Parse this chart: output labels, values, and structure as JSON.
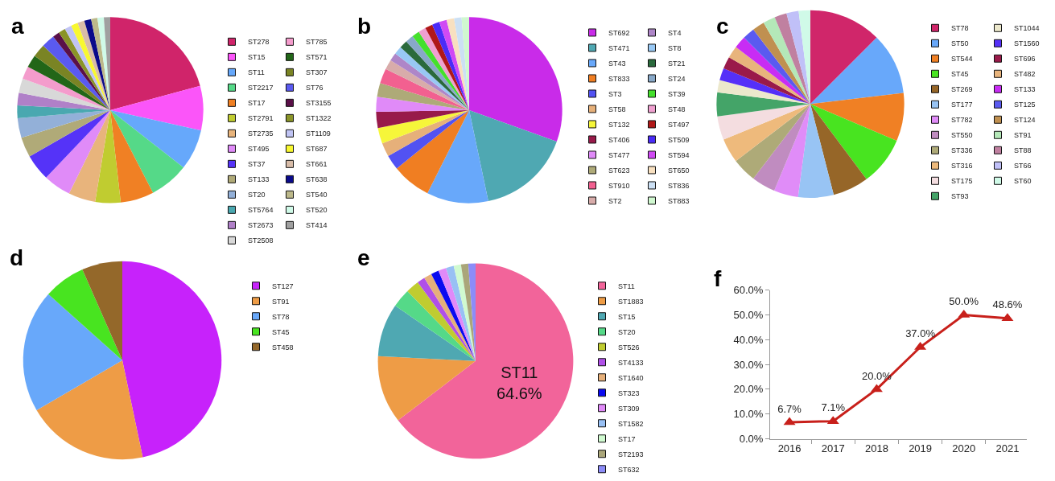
{
  "chart_data": [
    {
      "type": "pie",
      "title": "a",
      "legend": "right",
      "categories": [
        "ST278",
        "ST15",
        "ST11",
        "ST2217",
        "ST17",
        "ST2791",
        "ST2735",
        "ST495",
        "ST37",
        "ST133",
        "ST20",
        "ST5764",
        "ST2673",
        "ST2508",
        "ST785",
        "ST571",
        "ST307",
        "ST76",
        "ST3155",
        "ST1322",
        "ST1109",
        "ST687",
        "ST661",
        "ST638",
        "ST540",
        "ST520",
        "ST414"
      ],
      "values": [
        20.8,
        7.7,
        7.1,
        6.8,
        5.8,
        4.4,
        4.7,
        4.8,
        4.6,
        3.5,
        3.4,
        2.2,
        2.2,
        2.5,
        2.2,
        2.2,
        2.3,
        2.3,
        1.2,
        1.2,
        1.2,
        1.2,
        1.2,
        1.2,
        1.1,
        1.1,
        1.1
      ],
      "colors": [
        "#d0246a",
        "#fb55f9",
        "#66a8fb",
        "#55d988",
        "#f08024",
        "#c0cc30",
        "#e8b47c",
        "#e08bf8",
        "#5533f8",
        "#b0aa78",
        "#93b0d8",
        "#4aa8b0",
        "#b080c8",
        "#d8d8d8",
        "#f49ccc",
        "#226618",
        "#7a8424",
        "#5a5af0",
        "#5a1048",
        "#8a9428",
        "#c0c4f4",
        "#f8f830",
        "#d8bca8",
        "#0a0a8a",
        "#bcb88a",
        "#d0fae8",
        "#a0a0a0"
      ]
    },
    {
      "type": "pie",
      "title": "b",
      "legend": "right",
      "categories": [
        "ST692",
        "ST471",
        "ST43",
        "ST833",
        "ST3",
        "ST58",
        "ST132",
        "ST406",
        "ST477",
        "ST623",
        "ST910",
        "ST2",
        "ST4",
        "ST8",
        "ST21",
        "ST24",
        "ST39",
        "ST48",
        "ST497",
        "ST509",
        "ST594",
        "ST650",
        "ST836",
        "ST883"
      ],
      "values": [
        30.5,
        16.2,
        10.7,
        6.8,
        2.6,
        2.4,
        2.7,
        2.8,
        2.6,
        2.4,
        2.6,
        1.7,
        1.4,
        1.4,
        1.4,
        1.4,
        1.3,
        1.3,
        1.3,
        1.3,
        1.3,
        1.3,
        1.3,
        1.3
      ],
      "colors": [
        "#c92be9",
        "#4fa8b2",
        "#68a8fa",
        "#f07e22",
        "#5252f2",
        "#e6b07a",
        "#f6f63a",
        "#981a4a",
        "#e08af8",
        "#aeaa78",
        "#f26090",
        "#d8acaa",
        "#ae86c8",
        "#98c8f4",
        "#2a6a3c",
        "#88a8c8",
        "#44e02c",
        "#f0a0d0",
        "#b01818",
        "#4a2cf8",
        "#d04af4",
        "#f8e0c0",
        "#cce0f4",
        "#d0f8d0"
      ]
    },
    {
      "type": "pie",
      "title": "c",
      "legend": "right",
      "categories": [
        "ST78",
        "ST50",
        "ST544",
        "ST45",
        "ST269",
        "ST177",
        "ST782",
        "ST550",
        "ST336",
        "ST316",
        "ST175",
        "ST93",
        "ST1044",
        "ST1560",
        "ST696",
        "ST482",
        "ST133",
        "ST125",
        "ST124",
        "ST91",
        "ST88",
        "ST66",
        "ST60"
      ],
      "values": [
        12.5,
        10.6,
        8.3,
        8.4,
        6.2,
        6.1,
        4.2,
        4.1,
        4.2,
        4.2,
        4.1,
        4.1,
        2.1,
        2.1,
        2.1,
        2.1,
        2.1,
        2.1,
        2.1,
        2.1,
        2.1,
        2.1,
        2.0
      ],
      "colors": [
        "#d0266a",
        "#68a8fa",
        "#f08024",
        "#48e420",
        "#966628",
        "#98c4f4",
        "#e08cf8",
        "#c08cc0",
        "#aeaa78",
        "#eeba7c",
        "#f4dde0",
        "#44a468",
        "#ece8cc",
        "#5530f8",
        "#9a1a4a",
        "#e8b47c",
        "#c82cf4",
        "#5a5af0",
        "#c09050",
        "#b4e8b8",
        "#c080a0",
        "#c0c0f8",
        "#d0fae8"
      ]
    },
    {
      "type": "pie",
      "title": "d",
      "legend": "right",
      "categories": [
        "ST127",
        "ST91",
        "ST78",
        "ST45",
        "ST458"
      ],
      "values": [
        46.7,
        19.9,
        20.0,
        6.8,
        6.6
      ],
      "colors": [
        "#c722fb",
        "#ee9c46",
        "#68a8fa",
        "#48e420",
        "#94682a"
      ]
    },
    {
      "type": "pie",
      "title": "e",
      "legend": "right",
      "categories": [
        "ST11",
        "ST1883",
        "ST15",
        "ST20",
        "ST526",
        "ST4133",
        "ST1640",
        "ST323",
        "ST309",
        "ST1582",
        "ST17",
        "ST2193",
        "ST632"
      ],
      "values": [
        64.6,
        11.2,
        8.8,
        3.1,
        2.2,
        1.3,
        1.3,
        1.3,
        1.3,
        1.3,
        1.2,
        1.2,
        1.2
      ],
      "value_labels": [
        "ST11\n64.6%",
        null,
        null,
        null,
        null,
        null,
        null,
        null,
        null,
        null,
        null,
        null,
        null
      ],
      "colors": [
        "#f2649a",
        "#ee9c46",
        "#4fa8b2",
        "#55d988",
        "#c0cc30",
        "#b050e8",
        "#e6b07a",
        "#0a0af0",
        "#e08af8",
        "#98c0f4",
        "#d0fad0",
        "#aaa67a",
        "#8c8cf8"
      ]
    },
    {
      "type": "line",
      "title": "f",
      "marker": "triangle",
      "color": "#c8201b",
      "categories": [
        "2016",
        "2017",
        "2018",
        "2019",
        "2020",
        "2021"
      ],
      "values": [
        6.7,
        7.1,
        20.0,
        37.0,
        50.0,
        48.6
      ],
      "value_labels": [
        "6.7%",
        "7.1%",
        "20.0%",
        "37.0%",
        "50.0%",
        "48.6%"
      ],
      "ylim": [
        0,
        60
      ],
      "yticks": [
        {
          "value": 0,
          "label": "0.0%"
        },
        {
          "value": 10,
          "label": "10.0%"
        },
        {
          "value": 20,
          "label": "20.0%"
        },
        {
          "value": 30,
          "label": "30.0%"
        },
        {
          "value": 40,
          "label": "40.0%"
        },
        {
          "value": 50,
          "label": "50.0%"
        },
        {
          "value": 60,
          "label": "60.0%"
        }
      ]
    }
  ]
}
